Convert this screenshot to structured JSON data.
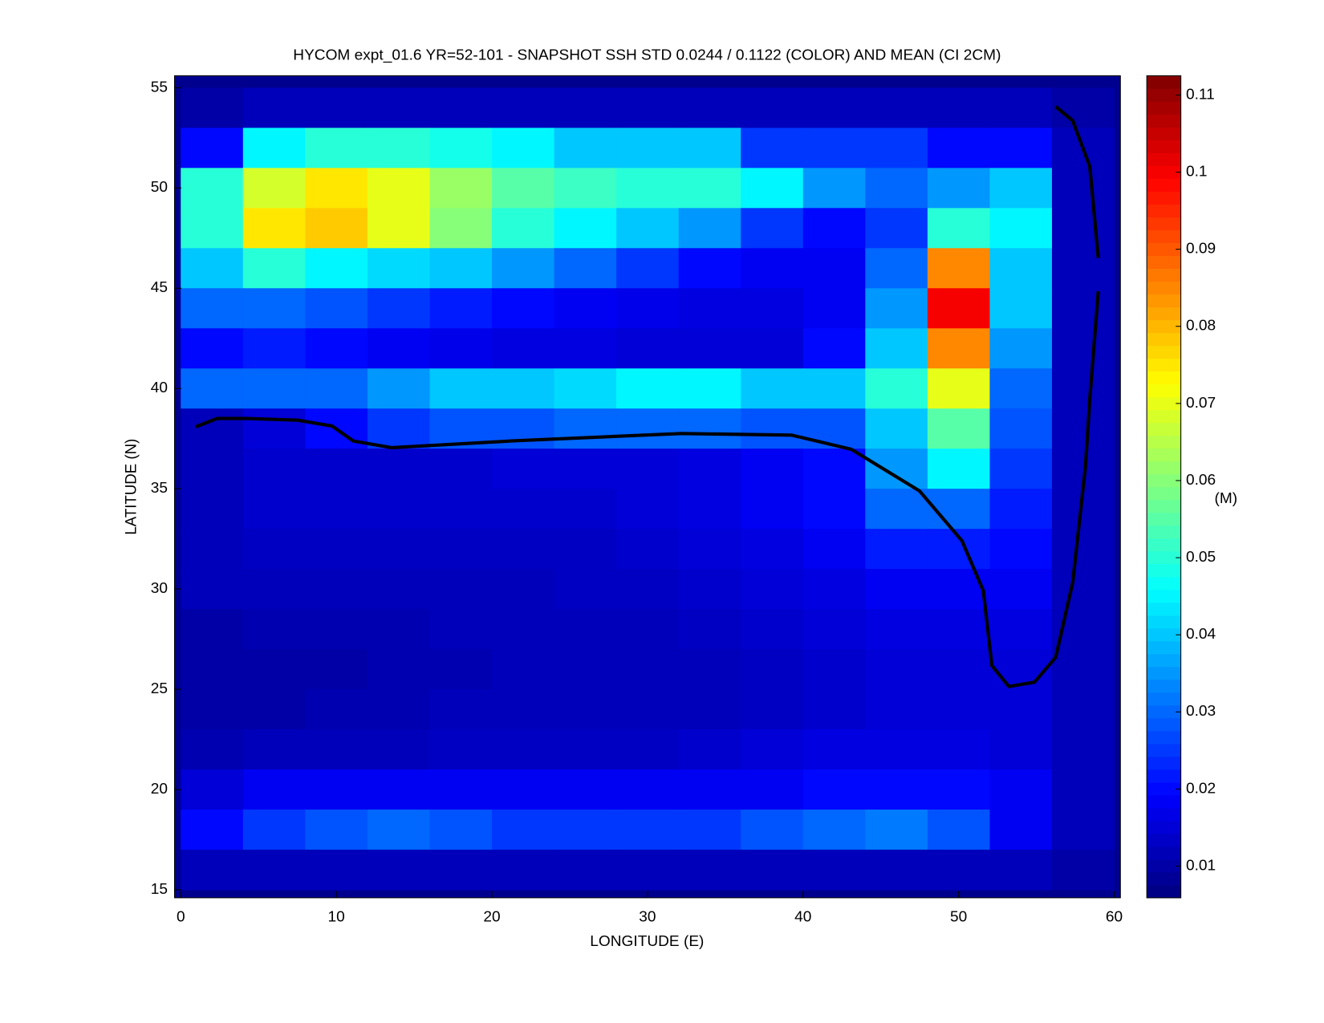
{
  "chart_data": {
    "type": "heatmap",
    "title": "HYCOM expt_01.6 YR=52-101 - SNAPSHOT SSH STD 0.0244 / 0.1122 (COLOR) AND MEAN (CI 2CM)",
    "xlabel": "LONGITUDE (E)",
    "ylabel": "LATITUDE (N)",
    "colorbar_label": "(M)",
    "colormap": "jet",
    "xlim": [
      -0.4,
      60.4
    ],
    "ylim": [
      14.6,
      55.6
    ],
    "xticks": [
      0,
      10,
      20,
      30,
      40,
      50,
      60
    ],
    "yticks": [
      15,
      20,
      25,
      30,
      35,
      40,
      45,
      50,
      55
    ],
    "clim": [
      0.0059,
      0.1125
    ],
    "cticks": [
      0.01,
      0.02,
      0.03,
      0.04,
      0.05,
      0.06,
      0.07,
      0.08,
      0.09,
      0.1,
      0.11
    ],
    "x": [
      2,
      6,
      10,
      14,
      18,
      22,
      26,
      30,
      34,
      38,
      42,
      46,
      50,
      54,
      58
    ],
    "y": [
      54,
      52,
      50,
      48,
      46,
      44,
      42,
      40,
      38,
      36,
      34,
      32,
      30,
      28,
      26,
      24,
      22,
      20,
      18,
      16
    ],
    "z": [
      [
        0.01,
        0.012,
        0.012,
        0.012,
        0.012,
        0.012,
        0.012,
        0.012,
        0.012,
        0.012,
        0.012,
        0.012,
        0.012,
        0.012,
        0.01
      ],
      [
        0.02,
        0.045,
        0.05,
        0.05,
        0.048,
        0.045,
        0.04,
        0.04,
        0.04,
        0.025,
        0.025,
        0.025,
        0.02,
        0.02,
        0.012
      ],
      [
        0.05,
        0.068,
        0.075,
        0.07,
        0.062,
        0.055,
        0.052,
        0.05,
        0.05,
        0.045,
        0.035,
        0.03,
        0.035,
        0.04,
        0.012
      ],
      [
        0.05,
        0.075,
        0.078,
        0.07,
        0.06,
        0.05,
        0.045,
        0.04,
        0.035,
        0.025,
        0.02,
        0.025,
        0.05,
        0.045,
        0.012
      ],
      [
        0.04,
        0.05,
        0.045,
        0.042,
        0.04,
        0.035,
        0.03,
        0.025,
        0.02,
        0.018,
        0.018,
        0.03,
        0.085,
        0.04,
        0.012
      ],
      [
        0.03,
        0.03,
        0.028,
        0.025,
        0.022,
        0.02,
        0.018,
        0.017,
        0.016,
        0.016,
        0.018,
        0.035,
        0.1,
        0.04,
        0.012
      ],
      [
        0.02,
        0.022,
        0.02,
        0.018,
        0.017,
        0.016,
        0.016,
        0.015,
        0.015,
        0.015,
        0.02,
        0.04,
        0.085,
        0.035,
        0.012
      ],
      [
        0.03,
        0.03,
        0.03,
        0.035,
        0.04,
        0.04,
        0.042,
        0.045,
        0.045,
        0.04,
        0.04,
        0.05,
        0.07,
        0.03,
        0.012
      ],
      [
        0.012,
        0.015,
        0.02,
        0.025,
        0.028,
        0.028,
        0.03,
        0.03,
        0.03,
        0.028,
        0.028,
        0.04,
        0.055,
        0.028,
        0.012
      ],
      [
        0.012,
        0.014,
        0.014,
        0.014,
        0.014,
        0.015,
        0.015,
        0.015,
        0.016,
        0.018,
        0.02,
        0.035,
        0.045,
        0.025,
        0.012
      ],
      [
        0.012,
        0.014,
        0.014,
        0.014,
        0.014,
        0.014,
        0.014,
        0.015,
        0.016,
        0.018,
        0.02,
        0.03,
        0.03,
        0.022,
        0.012
      ],
      [
        0.012,
        0.013,
        0.013,
        0.013,
        0.013,
        0.013,
        0.013,
        0.014,
        0.015,
        0.016,
        0.018,
        0.022,
        0.022,
        0.02,
        0.012
      ],
      [
        0.012,
        0.012,
        0.012,
        0.012,
        0.012,
        0.012,
        0.013,
        0.013,
        0.014,
        0.015,
        0.016,
        0.018,
        0.018,
        0.018,
        0.012
      ],
      [
        0.01,
        0.011,
        0.011,
        0.011,
        0.012,
        0.012,
        0.012,
        0.012,
        0.013,
        0.014,
        0.015,
        0.016,
        0.016,
        0.016,
        0.012
      ],
      [
        0.01,
        0.01,
        0.01,
        0.011,
        0.011,
        0.012,
        0.012,
        0.012,
        0.012,
        0.013,
        0.014,
        0.015,
        0.015,
        0.015,
        0.012
      ],
      [
        0.01,
        0.01,
        0.011,
        0.011,
        0.012,
        0.012,
        0.012,
        0.012,
        0.012,
        0.013,
        0.014,
        0.015,
        0.015,
        0.015,
        0.012
      ],
      [
        0.011,
        0.012,
        0.012,
        0.012,
        0.013,
        0.013,
        0.013,
        0.013,
        0.014,
        0.015,
        0.016,
        0.016,
        0.016,
        0.015,
        0.012
      ],
      [
        0.015,
        0.018,
        0.018,
        0.018,
        0.018,
        0.018,
        0.018,
        0.018,
        0.018,
        0.018,
        0.02,
        0.02,
        0.02,
        0.018,
        0.012
      ],
      [
        0.02,
        0.025,
        0.028,
        0.03,
        0.028,
        0.025,
        0.025,
        0.025,
        0.025,
        0.028,
        0.03,
        0.032,
        0.028,
        0.018,
        0.012
      ],
      [
        0.012,
        0.012,
        0.012,
        0.012,
        0.012,
        0.012,
        0.012,
        0.012,
        0.012,
        0.012,
        0.012,
        0.012,
        0.012,
        0.012,
        0.01
      ]
    ]
  }
}
